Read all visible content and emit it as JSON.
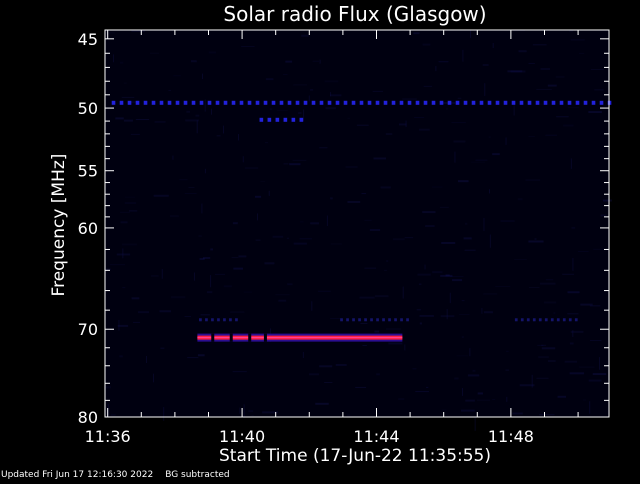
{
  "chart_data": {
    "type": "heatmap",
    "title": "Solar radio Flux (Glasgow)",
    "xlabel": "Start Time (17-Jun-22 11:35:55)",
    "ylabel": "Frequency [MHz]",
    "x_unit": "minutes after 11:35:55",
    "xlim": [
      0,
      15
    ],
    "ylim": [
      80.0,
      44.4
    ],
    "y_scale": "log",
    "x_ticks": [
      {
        "value": 0.08,
        "label": "11:36"
      },
      {
        "value": 4.08,
        "label": "11:40"
      },
      {
        "value": 8.08,
        "label": "11:44"
      },
      {
        "value": 12.08,
        "label": "11:48"
      }
    ],
    "y_ticks": [
      {
        "value": 45,
        "label": "45"
      },
      {
        "value": 50,
        "label": "50"
      },
      {
        "value": 55,
        "label": "55"
      },
      {
        "value": 60,
        "label": "60"
      },
      {
        "value": 70,
        "label": "70"
      },
      {
        "value": 80,
        "label": "80"
      }
    ],
    "grid": false,
    "colormap": {
      "low": "#000010",
      "mid": "#1010a0",
      "high": "#ff2040",
      "peak": "#ff40a0"
    },
    "features": [
      {
        "name": "interference line",
        "freq_mhz": 49.6,
        "t_start": 0.2,
        "t_end": 15,
        "intensity": 0.55,
        "dashed": true
      },
      {
        "name": "burst",
        "freq_mhz": 50.9,
        "t_start": 4.6,
        "t_end": 5.8,
        "intensity": 0.6,
        "dashed": true
      },
      {
        "name": "faint band",
        "freq_mhz": 69.0,
        "t_start": 2.8,
        "t_end": 3.9,
        "intensity": 0.25,
        "dashed": true
      },
      {
        "name": "faint band",
        "freq_mhz": 69.0,
        "t_start": 7.0,
        "t_end": 9.0,
        "intensity": 0.2,
        "dashed": true
      },
      {
        "name": "faint band",
        "freq_mhz": 69.0,
        "t_start": 12.2,
        "t_end": 14.0,
        "intensity": 0.2,
        "dashed": true
      },
      {
        "name": "strong emission",
        "freq_mhz": 70.9,
        "t_start": 2.75,
        "t_end": 8.85,
        "intensity": 1.0,
        "dashed": false
      }
    ]
  },
  "footer": {
    "updated": "Updated Fri Jun 17 12:16:30 2022",
    "bg": "BG subtracted"
  }
}
